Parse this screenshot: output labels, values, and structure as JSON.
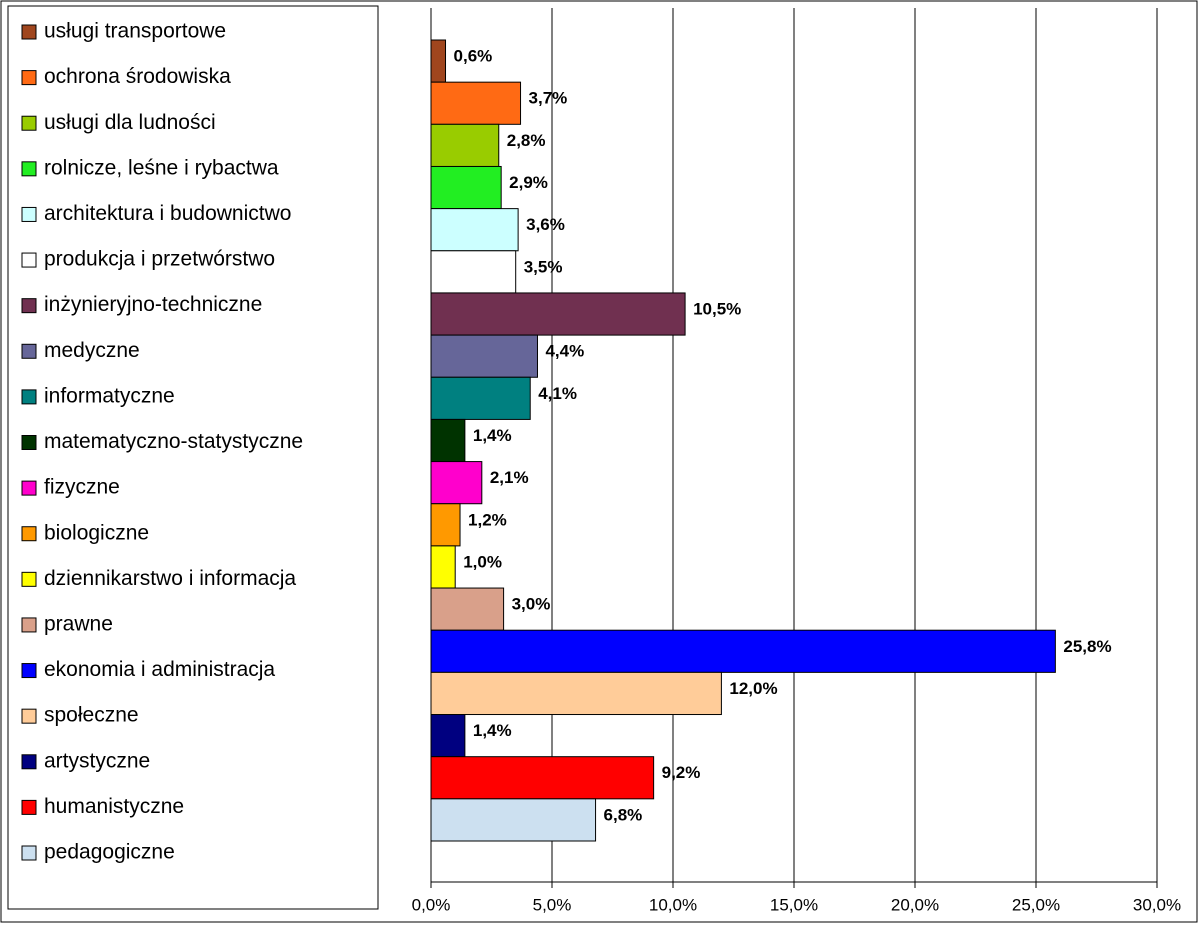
{
  "chart_data": {
    "type": "bar",
    "series": [
      {
        "name": "usługi transportowe",
        "color": "#a0461e",
        "values": [
          0.6
        ],
        "value_labels": [
          "0,6%"
        ]
      },
      {
        "name": "ochrona środowiska",
        "color": "#ff6a14",
        "values": [
          3.7
        ],
        "value_labels": [
          "3,7%"
        ]
      },
      {
        "name": "usługi dla ludności",
        "color": "#99cc00",
        "values": [
          2.8
        ],
        "value_labels": [
          "2,8%"
        ]
      },
      {
        "name": "rolnicze, leśne i rybactwa",
        "color": "#22ee22",
        "values": [
          2.9
        ],
        "value_labels": [
          "2,9%"
        ]
      },
      {
        "name": "architektura i budownictwo",
        "color": "#ccffff",
        "values": [
          3.6
        ],
        "value_labels": [
          "3,6%"
        ]
      },
      {
        "name": "produkcja i przetwórstwo",
        "color": "#ffffff",
        "values": [
          3.5
        ],
        "value_labels": [
          "3,5%"
        ]
      },
      {
        "name": "inżynieryjno-techniczne",
        "color": "#703050",
        "values": [
          10.5
        ],
        "value_labels": [
          "10,5%"
        ]
      },
      {
        "name": "medyczne",
        "color": "#666699",
        "values": [
          4.4
        ],
        "value_labels": [
          "4,4%"
        ]
      },
      {
        "name": "informatyczne",
        "color": "#008080",
        "values": [
          4.1
        ],
        "value_labels": [
          "4,1%"
        ]
      },
      {
        "name": "matematyczno-statystyczne",
        "color": "#003300",
        "values": [
          1.4
        ],
        "value_labels": [
          "1,4%"
        ]
      },
      {
        "name": "fizyczne",
        "color": "#ff00cc",
        "values": [
          2.1
        ],
        "value_labels": [
          "2,1%"
        ]
      },
      {
        "name": "biologiczne",
        "color": "#ff9900",
        "values": [
          1.2
        ],
        "value_labels": [
          "1,2%"
        ]
      },
      {
        "name": "dziennikarstwo i informacja",
        "color": "#ffff00",
        "values": [
          1.0
        ],
        "value_labels": [
          "1,0%"
        ]
      },
      {
        "name": "prawne",
        "color": "#d9a08a",
        "values": [
          3.0
        ],
        "value_labels": [
          "3,0%"
        ]
      },
      {
        "name": "ekonomia i administracja",
        "color": "#0000ff",
        "values": [
          25.8
        ],
        "value_labels": [
          "25,8%"
        ]
      },
      {
        "name": "społeczne",
        "color": "#ffcc99",
        "values": [
          12.0
        ],
        "value_labels": [
          "12,0%"
        ]
      },
      {
        "name": "artystyczne",
        "color": "#000080",
        "values": [
          1.4
        ],
        "value_labels": [
          "1,4%"
        ]
      },
      {
        "name": "humanistyczne",
        "color": "#ff0000",
        "values": [
          9.2
        ],
        "value_labels": [
          "9,2%"
        ]
      },
      {
        "name": "pedagogiczne",
        "color": "#cce0f0",
        "values": [
          6.8
        ],
        "value_labels": [
          "6,8%"
        ]
      }
    ],
    "xlim": [
      0,
      30
    ],
    "xticks": [
      {
        "value": 0,
        "label": "0,0%"
      },
      {
        "value": 5,
        "label": "5,0%"
      },
      {
        "value": 10,
        "label": "10,0%"
      },
      {
        "value": 15,
        "label": "15,0%"
      },
      {
        "value": 20,
        "label": "20,0%"
      },
      {
        "value": 25,
        "label": "25,0%"
      },
      {
        "value": 30,
        "label": "30,0%"
      }
    ],
    "grid": true
  }
}
